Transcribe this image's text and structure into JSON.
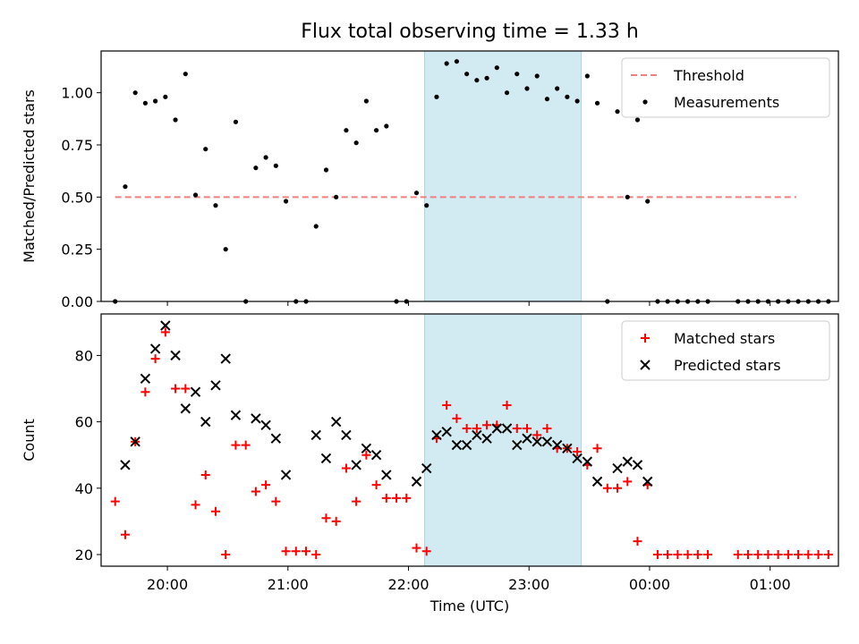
{
  "title": "Flux total observing time = 1.33 h",
  "colors": {
    "threshold": "#f08080",
    "measurement": "#000000",
    "matched": "#ff0000",
    "predicted": "#000000",
    "shade": "#add8e6"
  },
  "chart_data": [
    {
      "type": "scatter",
      "ylabel": "Matched/Predicted stars",
      "xlim": [
        "19:27",
        "01:34"
      ],
      "ylim": [
        0,
        1.2
      ],
      "yticks": [
        0,
        0.25,
        0.5,
        0.75,
        1.0
      ],
      "ytick_labels": [
        "0.00",
        "0.25",
        "0.50",
        "0.75",
        "1.00"
      ],
      "shaded_interval": [
        "22:08",
        "23:26"
      ],
      "legend": {
        "placement": "upper right",
        "entries": [
          "Threshold",
          "Measurements"
        ]
      },
      "threshold": {
        "name": "Threshold",
        "y": 0.5,
        "x_range": [
          "19:34",
          "01:13"
        ],
        "style": "dashed"
      },
      "series": [
        {
          "name": "Measurements",
          "marker": "dot",
          "points": [
            [
              "19:34",
              0.0
            ],
            [
              "19:39",
              0.55
            ],
            [
              "19:44",
              1.0
            ],
            [
              "19:49",
              0.95
            ],
            [
              "19:54",
              0.96
            ],
            [
              "19:59",
              0.98
            ],
            [
              "20:04",
              0.87
            ],
            [
              "20:09",
              1.09
            ],
            [
              "20:14",
              0.51
            ],
            [
              "20:19",
              0.73
            ],
            [
              "20:24",
              0.46
            ],
            [
              "20:29",
              0.25
            ],
            [
              "20:34",
              0.86
            ],
            [
              "20:39",
              0.0
            ],
            [
              "20:44",
              0.64
            ],
            [
              "20:49",
              0.69
            ],
            [
              "20:54",
              0.65
            ],
            [
              "20:59",
              0.48
            ],
            [
              "21:04",
              0.0
            ],
            [
              "21:09",
              0.0
            ],
            [
              "21:14",
              0.36
            ],
            [
              "21:19",
              0.63
            ],
            [
              "21:24",
              0.5
            ],
            [
              "21:29",
              0.82
            ],
            [
              "21:34",
              0.76
            ],
            [
              "21:39",
              0.96
            ],
            [
              "21:44",
              0.82
            ],
            [
              "21:49",
              0.84
            ],
            [
              "21:54",
              0.0
            ],
            [
              "21:59",
              0.0
            ],
            [
              "22:04",
              0.52
            ],
            [
              "22:09",
              0.46
            ],
            [
              "22:14",
              0.98
            ],
            [
              "22:19",
              1.14
            ],
            [
              "22:24",
              1.15
            ],
            [
              "22:29",
              1.09
            ],
            [
              "22:34",
              1.06
            ],
            [
              "22:39",
              1.07
            ],
            [
              "22:44",
              1.12
            ],
            [
              "22:49",
              1.0
            ],
            [
              "22:54",
              1.09
            ],
            [
              "22:59",
              1.02
            ],
            [
              "23:04",
              1.08
            ],
            [
              "23:09",
              0.97
            ],
            [
              "23:14",
              1.02
            ],
            [
              "23:19",
              0.98
            ],
            [
              "23:24",
              0.96
            ],
            [
              "23:29",
              1.08
            ],
            [
              "23:34",
              0.95
            ],
            [
              "23:39",
              0.0
            ],
            [
              "23:44",
              0.91
            ],
            [
              "23:49",
              0.5
            ],
            [
              "23:54",
              0.87
            ],
            [
              "23:59",
              0.48
            ],
            [
              "00:04",
              0.0
            ],
            [
              "00:09",
              0.0
            ],
            [
              "00:14",
              0.0
            ],
            [
              "00:19",
              0.0
            ],
            [
              "00:24",
              0.0
            ],
            [
              "00:29",
              0.0
            ],
            [
              "00:44",
              0.0
            ],
            [
              "00:49",
              0.0
            ],
            [
              "00:54",
              0.0
            ],
            [
              "00:59",
              0.0
            ],
            [
              "01:04",
              0.0
            ],
            [
              "01:09",
              0.0
            ],
            [
              "01:14",
              0.0
            ],
            [
              "01:19",
              0.0
            ],
            [
              "01:24",
              0.0
            ],
            [
              "01:29",
              0.0
            ]
          ]
        }
      ]
    },
    {
      "type": "scatter",
      "xlabel": "Time (UTC)",
      "ylabel": "Count",
      "xlim": [
        "19:27",
        "01:34"
      ],
      "ylim": [
        16.5,
        92.5
      ],
      "yticks": [
        20,
        40,
        60,
        80
      ],
      "ytick_labels": [
        "20",
        "40",
        "60",
        "80"
      ],
      "xticks": [
        "20:00",
        "21:00",
        "22:00",
        "23:00",
        "00:00",
        "01:00"
      ],
      "xtick_labels": [
        "20:00",
        "21:00",
        "22:00",
        "23:00",
        "00:00",
        "01:00"
      ],
      "shaded_interval": [
        "22:08",
        "23:26"
      ],
      "legend": {
        "placement": "upper right",
        "entries": [
          "Matched stars",
          "Predicted stars"
        ]
      },
      "series": [
        {
          "name": "Matched stars",
          "marker": "plus",
          "points": [
            [
              "19:34",
              36
            ],
            [
              "19:39",
              26
            ],
            [
              "19:44",
              54
            ],
            [
              "19:49",
              69
            ],
            [
              "19:54",
              79
            ],
            [
              "19:59",
              87
            ],
            [
              "20:04",
              70
            ],
            [
              "20:09",
              70
            ],
            [
              "20:14",
              35
            ],
            [
              "20:19",
              44
            ],
            [
              "20:24",
              33
            ],
            [
              "20:29",
              20
            ],
            [
              "20:34",
              53
            ],
            [
              "20:39",
              53
            ],
            [
              "20:44",
              39
            ],
            [
              "20:49",
              41
            ],
            [
              "20:54",
              36
            ],
            [
              "20:59",
              21
            ],
            [
              "21:04",
              21
            ],
            [
              "21:09",
              21
            ],
            [
              "21:14",
              20
            ],
            [
              "21:19",
              31
            ],
            [
              "21:24",
              30
            ],
            [
              "21:29",
              46
            ],
            [
              "21:34",
              36
            ],
            [
              "21:39",
              50
            ],
            [
              "21:44",
              41
            ],
            [
              "21:49",
              37
            ],
            [
              "21:54",
              37
            ],
            [
              "21:59",
              37
            ],
            [
              "22:04",
              22
            ],
            [
              "22:09",
              21
            ],
            [
              "22:14",
              55
            ],
            [
              "22:19",
              65
            ],
            [
              "22:24",
              61
            ],
            [
              "22:29",
              58
            ],
            [
              "22:34",
              58
            ],
            [
              "22:39",
              59
            ],
            [
              "22:44",
              59
            ],
            [
              "22:49",
              65
            ],
            [
              "22:54",
              58
            ],
            [
              "22:59",
              58
            ],
            [
              "23:04",
              56
            ],
            [
              "23:09",
              58
            ],
            [
              "23:14",
              52
            ],
            [
              "23:19",
              52
            ],
            [
              "23:24",
              51
            ],
            [
              "23:29",
              47
            ],
            [
              "23:34",
              52
            ],
            [
              "23:39",
              40
            ],
            [
              "23:44",
              40
            ],
            [
              "23:49",
              42
            ],
            [
              "23:54",
              24
            ],
            [
              "23:59",
              41
            ],
            [
              "00:04",
              20
            ],
            [
              "00:09",
              20
            ],
            [
              "00:14",
              20
            ],
            [
              "00:19",
              20
            ],
            [
              "00:24",
              20
            ],
            [
              "00:29",
              20
            ],
            [
              "00:44",
              20
            ],
            [
              "00:49",
              20
            ],
            [
              "00:54",
              20
            ],
            [
              "00:59",
              20
            ],
            [
              "01:04",
              20
            ],
            [
              "01:09",
              20
            ],
            [
              "01:14",
              20
            ],
            [
              "01:19",
              20
            ],
            [
              "01:24",
              20
            ],
            [
              "01:29",
              20
            ]
          ]
        },
        {
          "name": "Predicted stars",
          "marker": "x",
          "points": [
            [
              "19:39",
              47
            ],
            [
              "19:44",
              54
            ],
            [
              "19:49",
              73
            ],
            [
              "19:54",
              82
            ],
            [
              "19:59",
              89
            ],
            [
              "20:04",
              80
            ],
            [
              "20:09",
              64
            ],
            [
              "20:14",
              69
            ],
            [
              "20:19",
              60
            ],
            [
              "20:24",
              71
            ],
            [
              "20:29",
              79
            ],
            [
              "20:34",
              62
            ],
            [
              "20:44",
              61
            ],
            [
              "20:49",
              59
            ],
            [
              "20:54",
              55
            ],
            [
              "20:59",
              44
            ],
            [
              "21:14",
              56
            ],
            [
              "21:19",
              49
            ],
            [
              "21:24",
              60
            ],
            [
              "21:29",
              56
            ],
            [
              "21:34",
              47
            ],
            [
              "21:39",
              52
            ],
            [
              "21:44",
              50
            ],
            [
              "21:49",
              44
            ],
            [
              "22:04",
              42
            ],
            [
              "22:09",
              46
            ],
            [
              "22:14",
              56
            ],
            [
              "22:19",
              57
            ],
            [
              "22:24",
              53
            ],
            [
              "22:29",
              53
            ],
            [
              "22:34",
              56
            ],
            [
              "22:39",
              55
            ],
            [
              "22:44",
              58
            ],
            [
              "22:49",
              58
            ],
            [
              "22:54",
              53
            ],
            [
              "22:59",
              55
            ],
            [
              "23:04",
              54
            ],
            [
              "23:09",
              54
            ],
            [
              "23:14",
              53
            ],
            [
              "23:19",
              52
            ],
            [
              "23:24",
              49
            ],
            [
              "23:29",
              48
            ],
            [
              "23:34",
              42
            ],
            [
              "23:44",
              46
            ],
            [
              "23:49",
              48
            ],
            [
              "23:54",
              47
            ],
            [
              "23:59",
              42
            ]
          ]
        }
      ]
    }
  ]
}
